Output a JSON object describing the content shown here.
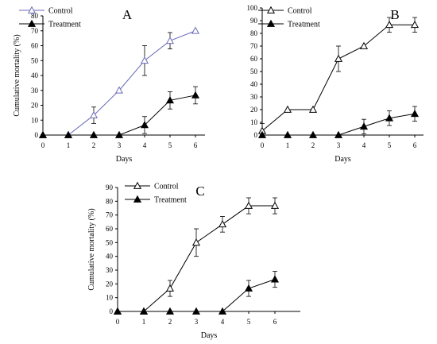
{
  "chart_data": [
    {
      "type": "line",
      "panel_label": "A",
      "xlabel": "Days",
      "ylabel": "Cumulative mortality (%)",
      "x": [
        0,
        1,
        2,
        3,
        4,
        5,
        6
      ],
      "xlim": [
        0,
        6
      ],
      "ylim": [
        0,
        80
      ],
      "yticks": [
        0,
        10,
        20,
        30,
        40,
        50,
        60,
        70,
        80
      ],
      "legend": "top-left",
      "grid": false,
      "series": [
        {
          "name": "Control",
          "marker": "open-triangle",
          "color": "#6a6ab8",
          "values": [
            0,
            0,
            13.3,
            30,
            50,
            63.3,
            70
          ],
          "errors": [
            0,
            0,
            5.5,
            0,
            10,
            5.5,
            0
          ]
        },
        {
          "name": "Treatment",
          "marker": "filled-triangle",
          "color": "#000000",
          "values": [
            0,
            0,
            0,
            0,
            6.7,
            23.3,
            26.7
          ],
          "errors": [
            0,
            0,
            0,
            0,
            5.7,
            5.8,
            5.8
          ]
        }
      ]
    },
    {
      "type": "line",
      "panel_label": "B",
      "xlabel": "Days",
      "ylabel": "",
      "x": [
        0,
        1,
        2,
        3,
        4,
        5,
        6
      ],
      "xlim": [
        0,
        6
      ],
      "ylim": [
        0,
        100
      ],
      "yticks": [
        0,
        10,
        20,
        30,
        40,
        50,
        60,
        70,
        80,
        90,
        100
      ],
      "legend": "top-left",
      "grid": false,
      "series": [
        {
          "name": "Control",
          "marker": "open-triangle",
          "color": "#000000",
          "values": [
            3.3,
            20,
            20,
            60,
            70,
            86.7,
            86.7
          ],
          "errors": [
            5.7,
            0,
            0,
            10,
            0,
            5.8,
            5.8
          ]
        },
        {
          "name": "Treatment",
          "marker": "filled-triangle",
          "color": "#000000",
          "values": [
            0,
            0,
            0,
            0,
            6.7,
            13.3,
            16.7
          ],
          "errors": [
            0,
            0,
            0,
            0,
            5.7,
            5.8,
            5.8
          ]
        }
      ]
    },
    {
      "type": "line",
      "panel_label": "C",
      "xlabel": "Days",
      "ylabel": "Cumulative mortality (%)",
      "x": [
        0,
        1,
        2,
        3,
        4,
        5,
        6
      ],
      "xlim": [
        0,
        6
      ],
      "ylim": [
        0,
        90
      ],
      "yticks": [
        0,
        10,
        20,
        30,
        40,
        50,
        60,
        70,
        80,
        90
      ],
      "legend": "top-left",
      "grid": false,
      "series": [
        {
          "name": "Control",
          "marker": "open-triangle",
          "color": "#000000",
          "values": [
            0,
            0,
            16.7,
            50,
            63.3,
            76.7,
            76.7
          ],
          "errors": [
            0,
            0,
            5.8,
            10,
            5.7,
            5.8,
            5.8
          ]
        },
        {
          "name": "Treatment",
          "marker": "filled-triangle",
          "color": "#000000",
          "values": [
            0,
            0,
            0,
            0,
            0,
            16.7,
            23.3
          ],
          "errors": [
            0,
            0,
            0,
            0,
            0,
            5.8,
            5.8
          ]
        }
      ]
    }
  ]
}
